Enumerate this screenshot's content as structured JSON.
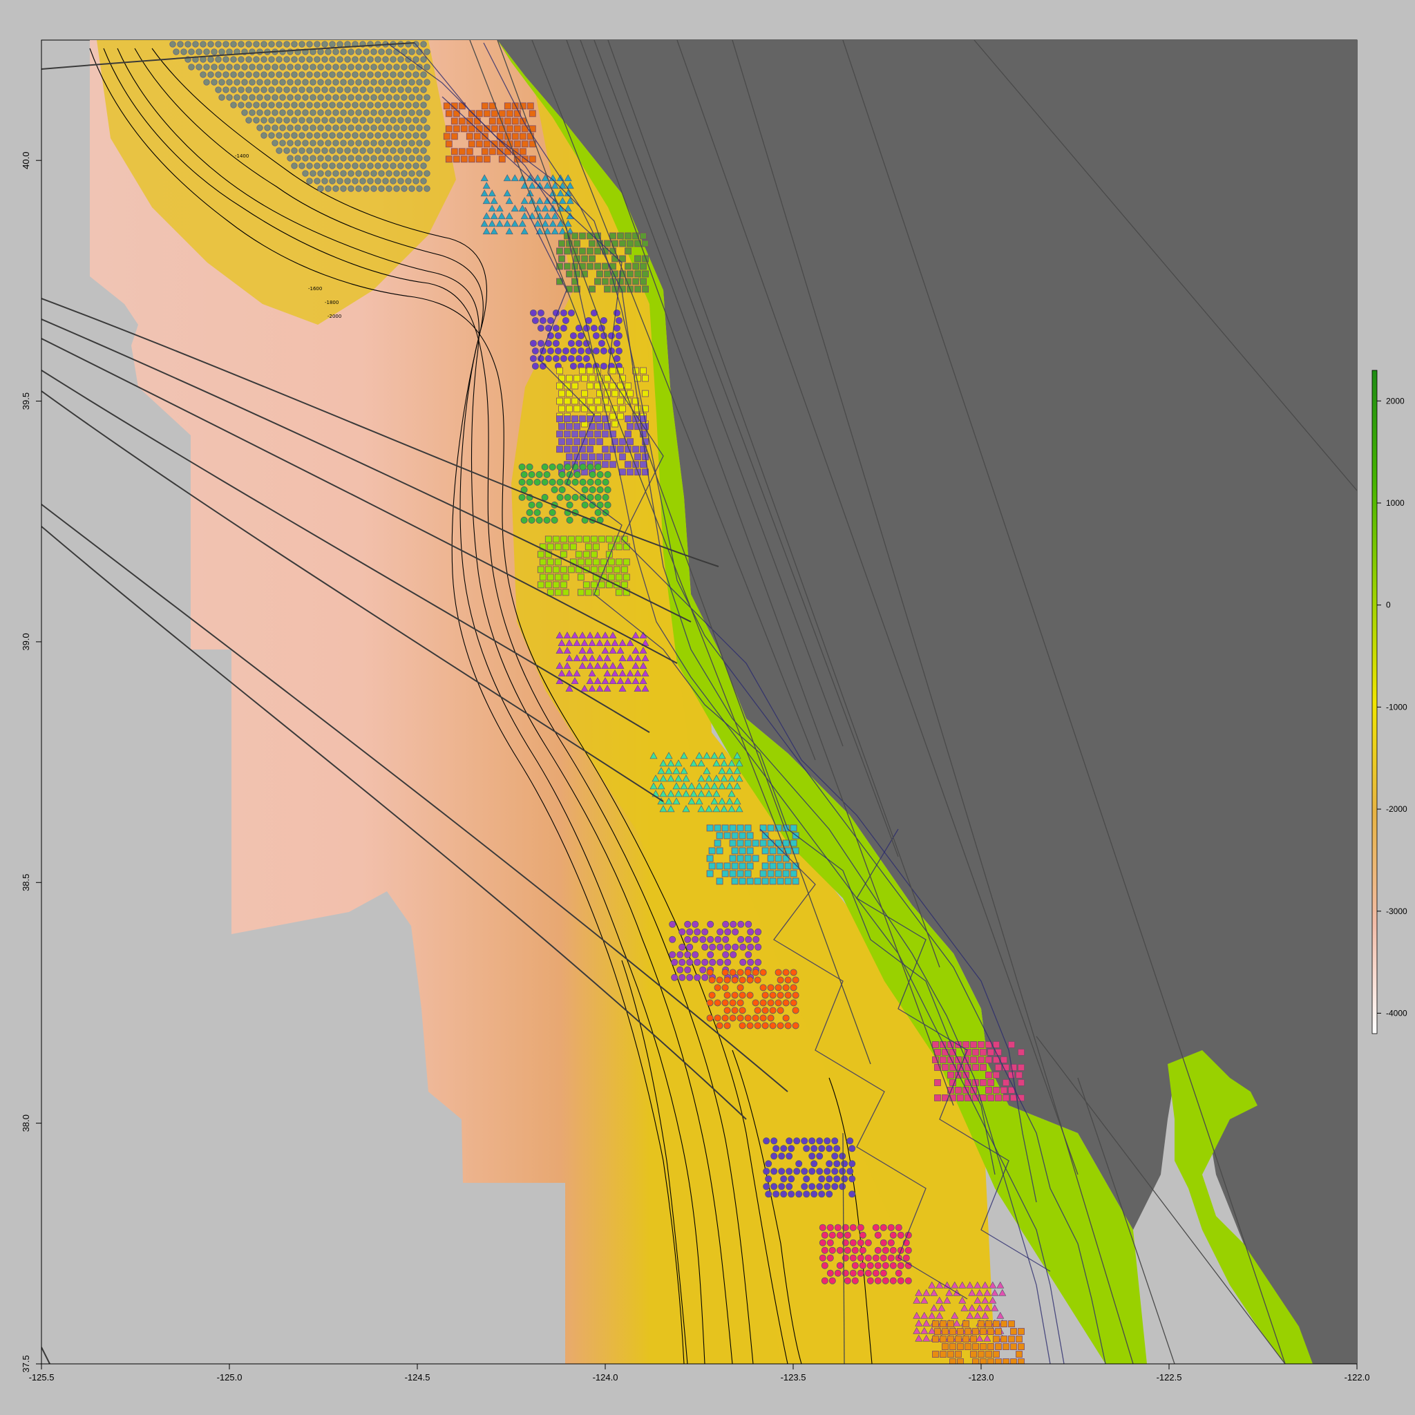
{
  "map": {
    "x_ticks": [
      "-125.5",
      "-125.0",
      "-124.5",
      "-124.0",
      "-123.5",
      "-123.0",
      "-122.5",
      "-122.0"
    ],
    "y_ticks": [
      "40.0",
      "39.5",
      "39.0",
      "38.5",
      "38.0",
      "37.5"
    ],
    "contour_labels": [
      "-1400",
      "-1600",
      "-1800",
      "-2000"
    ],
    "colors": {
      "background": "#c0c0c0",
      "land": "#646464",
      "bay_land": "#99d100",
      "shelf": "#e6c31e",
      "slope": "#e8b060",
      "deep": "#f0c4b4"
    }
  },
  "colorbar": {
    "labels": [
      "2000",
      "1000",
      "0",
      "-1000",
      "-2000",
      "-3000",
      "-4000"
    ],
    "gradient": [
      "#1e8c14",
      "#46b400",
      "#9ad200",
      "#f0e600",
      "#e8b443",
      "#f2bca8",
      "#ffffff"
    ]
  },
  "chart_data": {
    "type": "heatmap",
    "title": "",
    "xlabel": "",
    "ylabel": "",
    "xlim": [
      -125.5,
      -122.0
    ],
    "ylim": [
      37.5,
      40.25
    ],
    "x_ticks": [
      -125.5,
      -125.0,
      -124.5,
      -124.0,
      -123.5,
      -123.0,
      -122.5,
      -122.0
    ],
    "y_ticks": [
      40.0,
      39.5,
      39.0,
      38.5,
      38.0,
      37.5
    ],
    "colorbar": {
      "range": [
        -4200,
        2300
      ],
      "ticks": [
        2000,
        1000,
        0,
        -1000,
        -2000,
        -3000,
        -4000
      ]
    },
    "zones": [
      {
        "fill": "#e66a10",
        "marker": "square",
        "lon": -124.3,
        "lat": 40.05
      },
      {
        "fill": "#2aa6c0",
        "marker": "triangle",
        "lon": -124.2,
        "lat": 39.9
      },
      {
        "fill": "#5b9a32",
        "marker": "square",
        "lon": -124.0,
        "lat": 39.78
      },
      {
        "fill": "#6a3cc8",
        "marker": "circle",
        "lon": -124.07,
        "lat": 39.62
      },
      {
        "fill": "#e8e800",
        "marker": "square",
        "lon": -124.0,
        "lat": 39.5
      },
      {
        "fill": "#7a5ac0",
        "marker": "square",
        "lon": -124.0,
        "lat": 39.4
      },
      {
        "fill": "#3cb43c",
        "marker": "circle",
        "lon": -124.1,
        "lat": 39.3
      },
      {
        "fill": "#a0e000",
        "marker": "square",
        "lon": -124.05,
        "lat": 39.15
      },
      {
        "fill": "#b43cd0",
        "marker": "triangle",
        "lon": -124.0,
        "lat": 38.95
      },
      {
        "fill": "#3ce0a0",
        "marker": "triangle",
        "lon": -123.75,
        "lat": 38.7
      },
      {
        "fill": "#2ec4c4",
        "marker": "square",
        "lon": -123.6,
        "lat": 38.55
      },
      {
        "fill": "#9a40c0",
        "marker": "circle",
        "lon": -123.7,
        "lat": 38.35
      },
      {
        "fill": "#ff5a0a",
        "marker": "circle",
        "lon": -123.6,
        "lat": 38.25
      },
      {
        "fill": "#e04080",
        "marker": "square",
        "lon": -123.0,
        "lat": 38.1
      },
      {
        "fill": "#6040c0",
        "marker": "circle",
        "lon": -123.45,
        "lat": 37.9
      },
      {
        "fill": "#f0286e",
        "marker": "circle",
        "lon": -123.3,
        "lat": 37.72
      },
      {
        "fill": "#e050b0",
        "marker": "triangle",
        "lon": -123.05,
        "lat": 37.6
      },
      {
        "fill": "#e88c10",
        "marker": "square",
        "lon": -123.0,
        "lat": 37.52
      }
    ]
  }
}
